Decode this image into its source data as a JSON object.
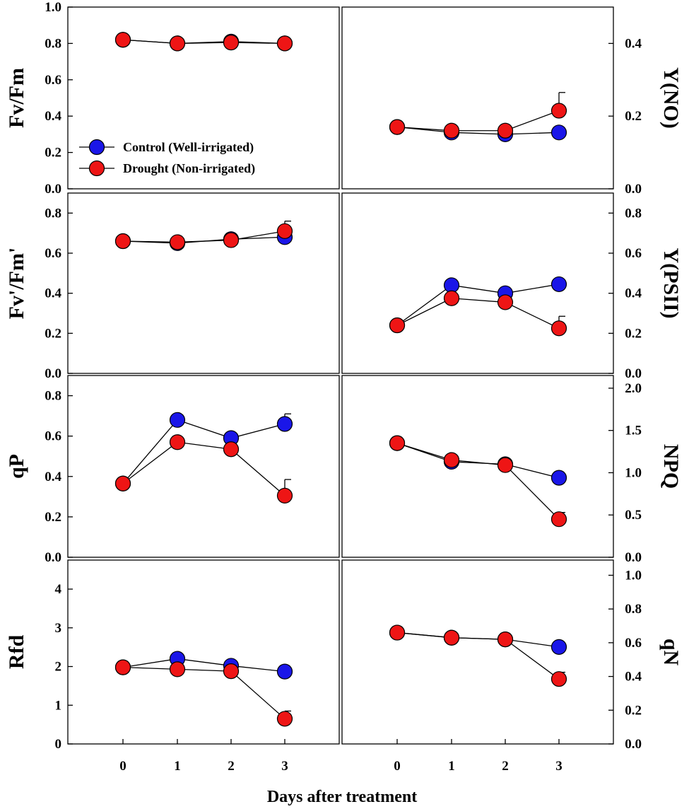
{
  "chart_data": {
    "type": "line",
    "x": [
      0,
      1,
      2,
      3
    ],
    "xlabel": "Days after treatment",
    "xticks": [
      "0",
      "1",
      "2",
      "3"
    ],
    "legend": {
      "position": "lower-left",
      "entries": [
        "Control (Well-irrigated)",
        "Drought (Non-irrigated)"
      ]
    },
    "colors": {
      "control": "#1a16e8",
      "drought": "#ee1515",
      "axis": "#000000"
    },
    "panels": [
      {
        "id": "fvfm",
        "ylabel": "Fv/Fm",
        "yaxis_side": "left",
        "ylim": [
          0,
          1.0
        ],
        "yticks": [
          "0.0",
          "0.2",
          "0.4",
          "0.6",
          "0.8",
          "1.0"
        ],
        "yticks_values": [
          0,
          0.2,
          0.4,
          0.6,
          0.8,
          1.0
        ],
        "series": [
          {
            "name": "Control (Well-irrigated)",
            "values": [
              0.82,
              0.8,
              0.81,
              0.8
            ],
            "errors": [
              0,
              0,
              0,
              0
            ]
          },
          {
            "name": "Drought (Non-irrigated)",
            "values": [
              0.82,
              0.8,
              0.805,
              0.8
            ],
            "errors": [
              0,
              0,
              0,
              0
            ]
          }
        ]
      },
      {
        "id": "yno",
        "ylabel": "Y(NO)",
        "yaxis_side": "right",
        "ylim": [
          0,
          0.5
        ],
        "yticks": [
          "0.0",
          "0.2",
          "0.4"
        ],
        "yticks_values": [
          0,
          0.2,
          0.4
        ],
        "series": [
          {
            "name": "Control (Well-irrigated)",
            "values": [
              0.17,
              0.155,
              0.15,
              0.155
            ],
            "errors": [
              0,
              0,
              0,
              0
            ]
          },
          {
            "name": "Drought (Non-irrigated)",
            "values": [
              0.17,
              0.16,
              0.16,
              0.215
            ],
            "errors": [
              0,
              0,
              0,
              0.05
            ]
          }
        ]
      },
      {
        "id": "fvfmprime",
        "ylabel": "Fv'/Fm'",
        "yaxis_side": "left",
        "ylim": [
          0,
          0.9
        ],
        "yticks": [
          "0.0",
          "0.2",
          "0.4",
          "0.6",
          "0.8"
        ],
        "yticks_values": [
          0,
          0.2,
          0.4,
          0.6,
          0.8
        ],
        "series": [
          {
            "name": "Control (Well-irrigated)",
            "values": [
              0.66,
              0.65,
              0.67,
              0.68
            ],
            "errors": [
              0,
              0,
              0,
              0
            ]
          },
          {
            "name": "Drought (Non-irrigated)",
            "values": [
              0.66,
              0.655,
              0.665,
              0.71
            ],
            "errors": [
              0,
              0,
              0,
              0.05
            ]
          }
        ]
      },
      {
        "id": "ypsii",
        "ylabel": "Y(PSII)",
        "yaxis_side": "right",
        "ylim": [
          0,
          0.9
        ],
        "yticks": [
          "0.0",
          "0.2",
          "0.4",
          "0.6",
          "0.8"
        ],
        "yticks_values": [
          0,
          0.2,
          0.4,
          0.6,
          0.8
        ],
        "series": [
          {
            "name": "Control (Well-irrigated)",
            "values": [
              0.24,
              0.44,
              0.4,
              0.445
            ],
            "errors": [
              0,
              0,
              0,
              0
            ]
          },
          {
            "name": "Drought (Non-irrigated)",
            "values": [
              0.24,
              0.375,
              0.355,
              0.225
            ],
            "errors": [
              0,
              0,
              0,
              0.06
            ]
          }
        ]
      },
      {
        "id": "qp",
        "ylabel": "qP",
        "yaxis_side": "left",
        "ylim": [
          0,
          0.9
        ],
        "yticks": [
          "0.0",
          "0.2",
          "0.4",
          "0.6",
          "0.8"
        ],
        "yticks_values": [
          0,
          0.2,
          0.4,
          0.6,
          0.8
        ],
        "series": [
          {
            "name": "Control (Well-irrigated)",
            "values": [
              0.365,
              0.68,
              0.59,
              0.66
            ],
            "errors": [
              0,
              0,
              0,
              0.05
            ]
          },
          {
            "name": "Drought (Non-irrigated)",
            "values": [
              0.365,
              0.57,
              0.535,
              0.305
            ],
            "errors": [
              0,
              0,
              0,
              0.08
            ]
          }
        ]
      },
      {
        "id": "npq",
        "ylabel": "NPQ",
        "yaxis_side": "right",
        "ylim": [
          0,
          2.15
        ],
        "yticks": [
          "0.0",
          "0.5",
          "1.0",
          "1.5",
          "2.0"
        ],
        "yticks_values": [
          0,
          0.5,
          1.0,
          1.5,
          2.0
        ],
        "series": [
          {
            "name": "Control (Well-irrigated)",
            "values": [
              1.35,
              1.13,
              1.1,
              0.94
            ],
            "errors": [
              0,
              0,
              0,
              0
            ]
          },
          {
            "name": "Drought (Non-irrigated)",
            "values": [
              1.35,
              1.15,
              1.09,
              0.45
            ],
            "errors": [
              0,
              0,
              0,
              0.08
            ]
          }
        ]
      },
      {
        "id": "rfd",
        "ylabel": "Rfd",
        "yaxis_side": "left",
        "ylim": [
          0,
          4.75
        ],
        "yticks": [
          "0",
          "1",
          "2",
          "3",
          "4"
        ],
        "yticks_values": [
          0,
          1,
          2,
          3,
          4
        ],
        "series": [
          {
            "name": "Control (Well-irrigated)",
            "values": [
              1.98,
              2.2,
              2.02,
              1.87
            ],
            "errors": [
              0,
              0,
              0,
              0
            ]
          },
          {
            "name": "Drought (Non-irrigated)",
            "values": [
              1.98,
              1.93,
              1.88,
              0.65
            ],
            "errors": [
              0,
              0,
              0,
              0.2
            ]
          }
        ]
      },
      {
        "id": "qn",
        "ylabel": "qN",
        "yaxis_side": "right",
        "ylim": [
          0,
          1.09
        ],
        "yticks": [
          "0.0",
          "0.2",
          "0.4",
          "0.6",
          "0.8",
          "1.0"
        ],
        "yticks_values": [
          0,
          0.2,
          0.4,
          0.6,
          0.8,
          1.0
        ],
        "series": [
          {
            "name": "Control (Well-irrigated)",
            "values": [
              0.66,
              0.63,
              0.62,
              0.575
            ],
            "errors": [
              0,
              0,
              0,
              0
            ]
          },
          {
            "name": "Drought (Non-irrigated)",
            "values": [
              0.66,
              0.63,
              0.62,
              0.385
            ],
            "errors": [
              0,
              0,
              0,
              0.04
            ]
          }
        ]
      }
    ]
  }
}
